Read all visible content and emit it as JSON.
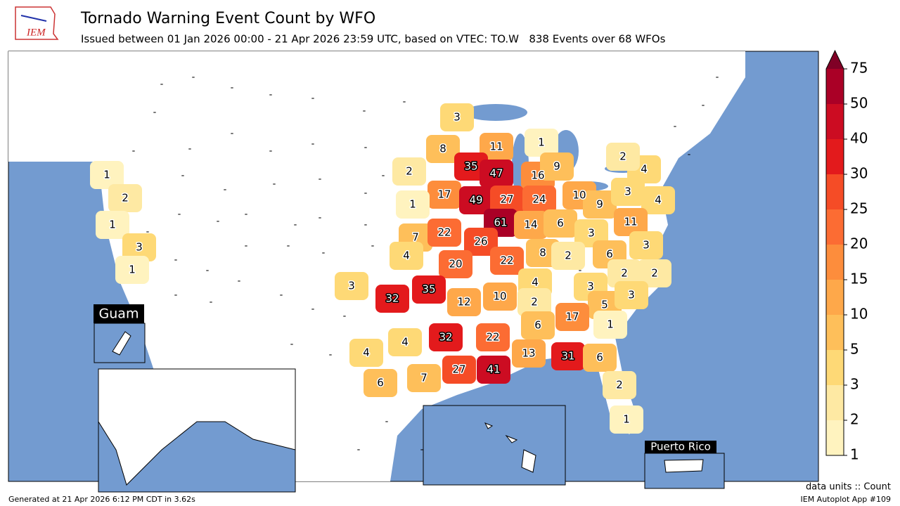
{
  "header": {
    "logo_text": "IEM",
    "title": "Tornado Warning Event Count by WFO",
    "subtitle": "Issued between 01 Jan 2026 00:00 - 21 Apr 2026 23:59 UTC, based on VTEC: TO.W   838 Events over 68 WFOs"
  },
  "map": {
    "no_event_label": "-",
    "inset_labels": [
      "Guam",
      "Puerto Rico"
    ],
    "wfo_counts": [
      3,
      8,
      11,
      1,
      2,
      35,
      47,
      16,
      9,
      1,
      2,
      17,
      49,
      27,
      24,
      10,
      1,
      9,
      3,
      4,
      2,
      4,
      1,
      7,
      22,
      61,
      14,
      6,
      3,
      11,
      3,
      4,
      26,
      20,
      22,
      8,
      2,
      6,
      3,
      1,
      2,
      2,
      3,
      32,
      35,
      12,
      10,
      4,
      2,
      3,
      5,
      3,
      17,
      6,
      22,
      4,
      32,
      1,
      4,
      13,
      31,
      6,
      6,
      7,
      27,
      41,
      2,
      1
    ]
  },
  "colorbar": {
    "ticks": [
      1,
      2,
      3,
      5,
      10,
      15,
      20,
      25,
      30,
      40,
      50,
      75
    ],
    "colors": [
      "#fff3bf",
      "#fee9a3",
      "#fed976",
      "#febf5a",
      "#fea84a",
      "#fd8d3c",
      "#fc6c33",
      "#f54c26",
      "#e31a1c",
      "#cc0c22",
      "#aa0026"
    ],
    "over_color": "#800026",
    "units_label": "data units :: Count"
  },
  "footer": {
    "generated": "Generated at 21 Apr 2026 6:12 PM CDT in 3.62s",
    "app": "IEM Autoplot App #109"
  }
}
